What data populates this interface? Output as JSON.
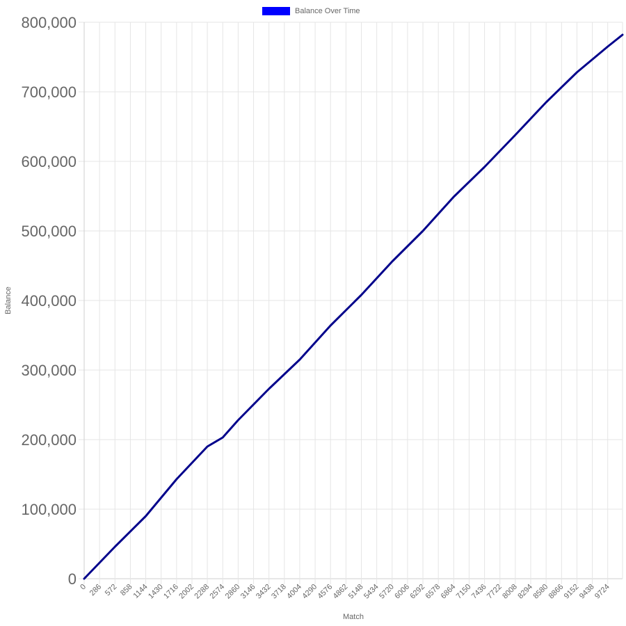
{
  "chart_data": {
    "type": "line",
    "xlabel": "Match",
    "ylabel": "Balance",
    "legend": {
      "position": "top-center",
      "entries": [
        "Balance Over Time"
      ]
    },
    "grid": true,
    "xlim": [
      0,
      9999
    ],
    "ylim": [
      0,
      800000
    ],
    "x_ticks": [
      0,
      286,
      572,
      858,
      1144,
      1430,
      1716,
      2002,
      2288,
      2574,
      2860,
      3146,
      3432,
      3718,
      4004,
      4290,
      4576,
      4862,
      5148,
      5434,
      5720,
      6006,
      6292,
      6578,
      6864,
      7150,
      7436,
      7722,
      8008,
      8294,
      8580,
      8866,
      9152,
      9438,
      9724
    ],
    "y_ticks": [
      "0",
      "100,000",
      "200,000",
      "300,000",
      "400,000",
      "500,000",
      "600,000",
      "700,000",
      "800,000"
    ],
    "y_tick_values": [
      0,
      100000,
      200000,
      300000,
      400000,
      500000,
      600000,
      700000,
      800000
    ],
    "series": [
      {
        "name": "Balance Over Time",
        "color": "#0000ff",
        "x": [
          0,
          572,
          1144,
          1716,
          2288,
          2574,
          2860,
          3432,
          4004,
          4576,
          5148,
          5720,
          6292,
          6864,
          7436,
          8008,
          8580,
          9152,
          9724,
          9999
        ],
        "y": [
          0,
          46000,
          90000,
          143000,
          190000,
          203000,
          228000,
          273000,
          315000,
          364000,
          408000,
          456000,
          500000,
          549000,
          592000,
          638000,
          685000,
          728000,
          765000,
          782000
        ]
      }
    ]
  }
}
